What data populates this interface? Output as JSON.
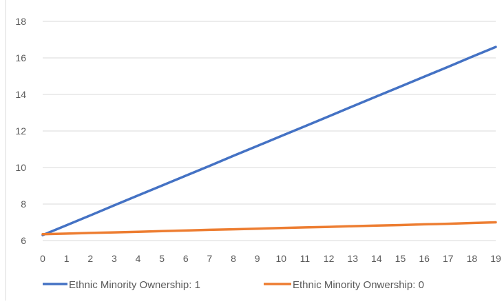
{
  "chart_data": {
    "type": "line",
    "title": "",
    "xlabel": "",
    "ylabel": "",
    "x": [
      0,
      1,
      2,
      3,
      4,
      5,
      6,
      7,
      8,
      9,
      10,
      11,
      12,
      13,
      14,
      15,
      16,
      17,
      18,
      19
    ],
    "xlim": [
      0,
      19
    ],
    "ylim": [
      6,
      18
    ],
    "y_ticks": [
      6,
      8,
      10,
      12,
      14,
      16,
      18
    ],
    "grid": true,
    "legend_position": "bottom",
    "series": [
      {
        "name": "Ethnic Minority Ownership: 1",
        "color": "#4472c4",
        "values": [
          6.3,
          6.84,
          7.38,
          7.93,
          8.47,
          9.01,
          9.55,
          10.09,
          10.64,
          11.18,
          11.72,
          12.26,
          12.8,
          13.35,
          13.89,
          14.43,
          14.97,
          15.51,
          16.06,
          16.6
        ]
      },
      {
        "name": "Ethnic Minority Onwership: 0",
        "color": "#ed7d31",
        "values": [
          6.35,
          6.38,
          6.42,
          6.45,
          6.48,
          6.52,
          6.55,
          6.59,
          6.62,
          6.65,
          6.69,
          6.72,
          6.75,
          6.79,
          6.82,
          6.85,
          6.89,
          6.92,
          6.96,
          7.0
        ]
      }
    ]
  }
}
